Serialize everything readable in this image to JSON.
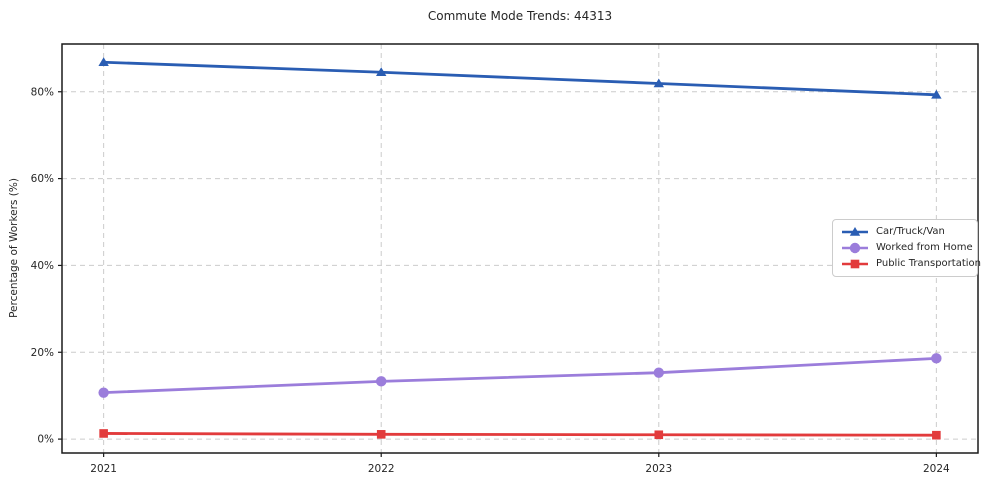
{
  "figure": {
    "background": "#ffffff"
  },
  "chart_data": {
    "type": "line",
    "title": "Commute Mode Trends: 44313",
    "xlabel": "",
    "ylabel": "Percentage of Workers (%)",
    "x": [
      2021,
      2022,
      2023,
      2024
    ],
    "xtick_labels": [
      "2021",
      "2022",
      "2023",
      "2024"
    ],
    "ytick_values": [
      0,
      20,
      40,
      60,
      80
    ],
    "ytick_labels": [
      "0%",
      "20%",
      "40%",
      "60%",
      "80%"
    ],
    "xlim": [
      2020.85,
      2024.15
    ],
    "ylim": [
      -3.2,
      91.0
    ],
    "grid": true,
    "legend_position": "center right",
    "series": [
      {
        "name": "Car/Truck/Van",
        "marker": "triangle",
        "color": "#2a5db3",
        "values": [
          86.8,
          84.5,
          81.9,
          79.3
        ]
      },
      {
        "name": "Worked from Home",
        "marker": "circle",
        "color": "#9b7ddb",
        "values": [
          10.7,
          13.3,
          15.3,
          18.6
        ]
      },
      {
        "name": "Public Transportation",
        "marker": "square",
        "color": "#e23b3c",
        "values": [
          1.3,
          1.1,
          1.0,
          0.9
        ]
      }
    ]
  },
  "styles": {
    "grid_color": "#cccccc",
    "axis_color": "#1a1a1a",
    "text_color": "#262626",
    "legend_border": "#cccccc"
  }
}
